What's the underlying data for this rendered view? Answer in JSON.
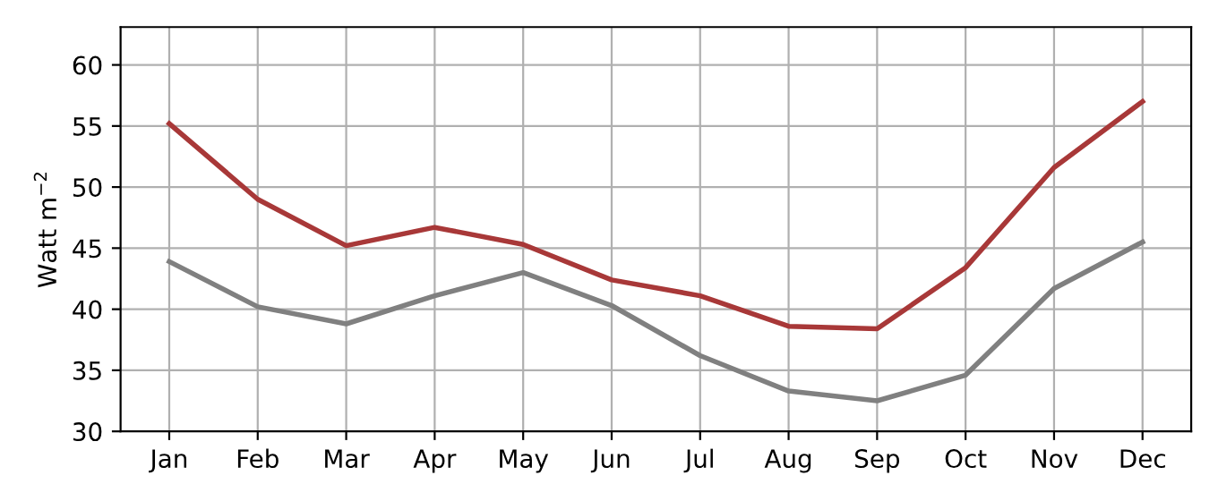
{
  "chart_data": {
    "type": "line",
    "ylabel": "Watt m$^{−2}$",
    "categories": [
      "Jan",
      "Feb",
      "Mar",
      "Apr",
      "May",
      "Jun",
      "Jul",
      "Aug",
      "Sep",
      "Oct",
      "Nov",
      "Dec"
    ],
    "series": [
      {
        "color": "#a83838",
        "values": [
          55.2,
          49.0,
          45.2,
          46.7,
          45.3,
          42.4,
          41.1,
          38.6,
          38.4,
          43.4,
          51.6,
          57.0
        ]
      },
      {
        "color": "#808080",
        "values": [
          43.9,
          40.2,
          38.8,
          41.1,
          43.0,
          40.3,
          36.2,
          33.3,
          32.5,
          34.6,
          41.7,
          45.5
        ]
      }
    ],
    "ylim": [
      30,
      63.1
    ],
    "yticks": [
      30,
      35,
      40,
      45,
      50,
      55,
      60
    ],
    "grid": true,
    "line_style": "solid",
    "marker": "none"
  }
}
